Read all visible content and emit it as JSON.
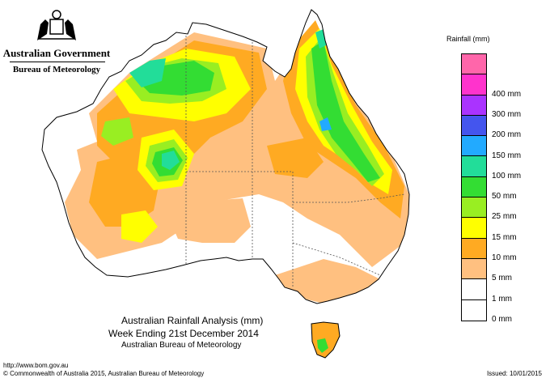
{
  "header": {
    "government": "Australian Government",
    "bureau": "Bureau of Meteorology"
  },
  "legend": {
    "title": "Rainfall (mm)",
    "items": [
      {
        "label": "",
        "color": "#ff66aa"
      },
      {
        "label": "400 mm",
        "color": "#ff33cc"
      },
      {
        "label": "300 mm",
        "color": "#aa33ff"
      },
      {
        "label": "200 mm",
        "color": "#4455ee"
      },
      {
        "label": "150 mm",
        "color": "#22aaff"
      },
      {
        "label": "100 mm",
        "color": "#22dd99"
      },
      {
        "label": "50 mm",
        "color": "#33dd33"
      },
      {
        "label": "25 mm",
        "color": "#99ee22"
      },
      {
        "label": "15 mm",
        "color": "#ffff00"
      },
      {
        "label": "10 mm",
        "color": "#ffaa22"
      },
      {
        "label": "5 mm",
        "color": "#ffc080"
      },
      {
        "label": "1 mm",
        "color": "#ffffff"
      },
      {
        "label": "0 mm",
        "color": "#ffffff"
      }
    ]
  },
  "title": {
    "line1": "Australian Rainfall Analysis (mm)",
    "line2": "Week Ending 21st December 2014",
    "line3": "Australian Bureau of Meteorology"
  },
  "footer": {
    "url": "http://www.bom.gov.au",
    "copyright": "© Commonwealth of Australia 2015, Australian Bureau of Meteorology",
    "issued": "Issued: 10/01/2015"
  }
}
